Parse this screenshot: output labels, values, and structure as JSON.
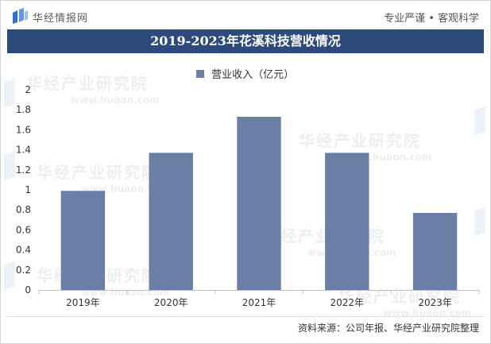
{
  "header": {
    "logo_text": "华经情报网",
    "slogan": "专业严谨 • 客观科学"
  },
  "icons": {
    "logo": "huaon-logo-icon"
  },
  "watermark": {
    "text_cn": "华经产业研究院",
    "text_url": "www.huaon.com"
  },
  "footer": {
    "source": "资料来源：公司年报、华经产业研究院整理"
  },
  "colors": {
    "title_bar": "#2d4a7c",
    "bar": "#6b7ea6",
    "axis": "#bfbfbf",
    "text": "#333333"
  },
  "chart_data": {
    "type": "bar",
    "title": "2019-2023年花溪科技营收情况",
    "xlabel": "",
    "ylabel": "",
    "categories": [
      "2019年",
      "2020年",
      "2021年",
      "2022年",
      "2023年"
    ],
    "series": [
      {
        "name": "营业收入（亿元）",
        "values": [
          0.99,
          1.37,
          1.73,
          1.37,
          0.77
        ]
      }
    ],
    "ylim": [
      0,
      2
    ],
    "y_ticks": [
      "0",
      "0.2",
      "0.4",
      "0.6",
      "0.8",
      "1",
      "1.2",
      "1.4",
      "1.6",
      "1.8",
      "2"
    ],
    "grid": false,
    "legend_position": "top-center"
  }
}
